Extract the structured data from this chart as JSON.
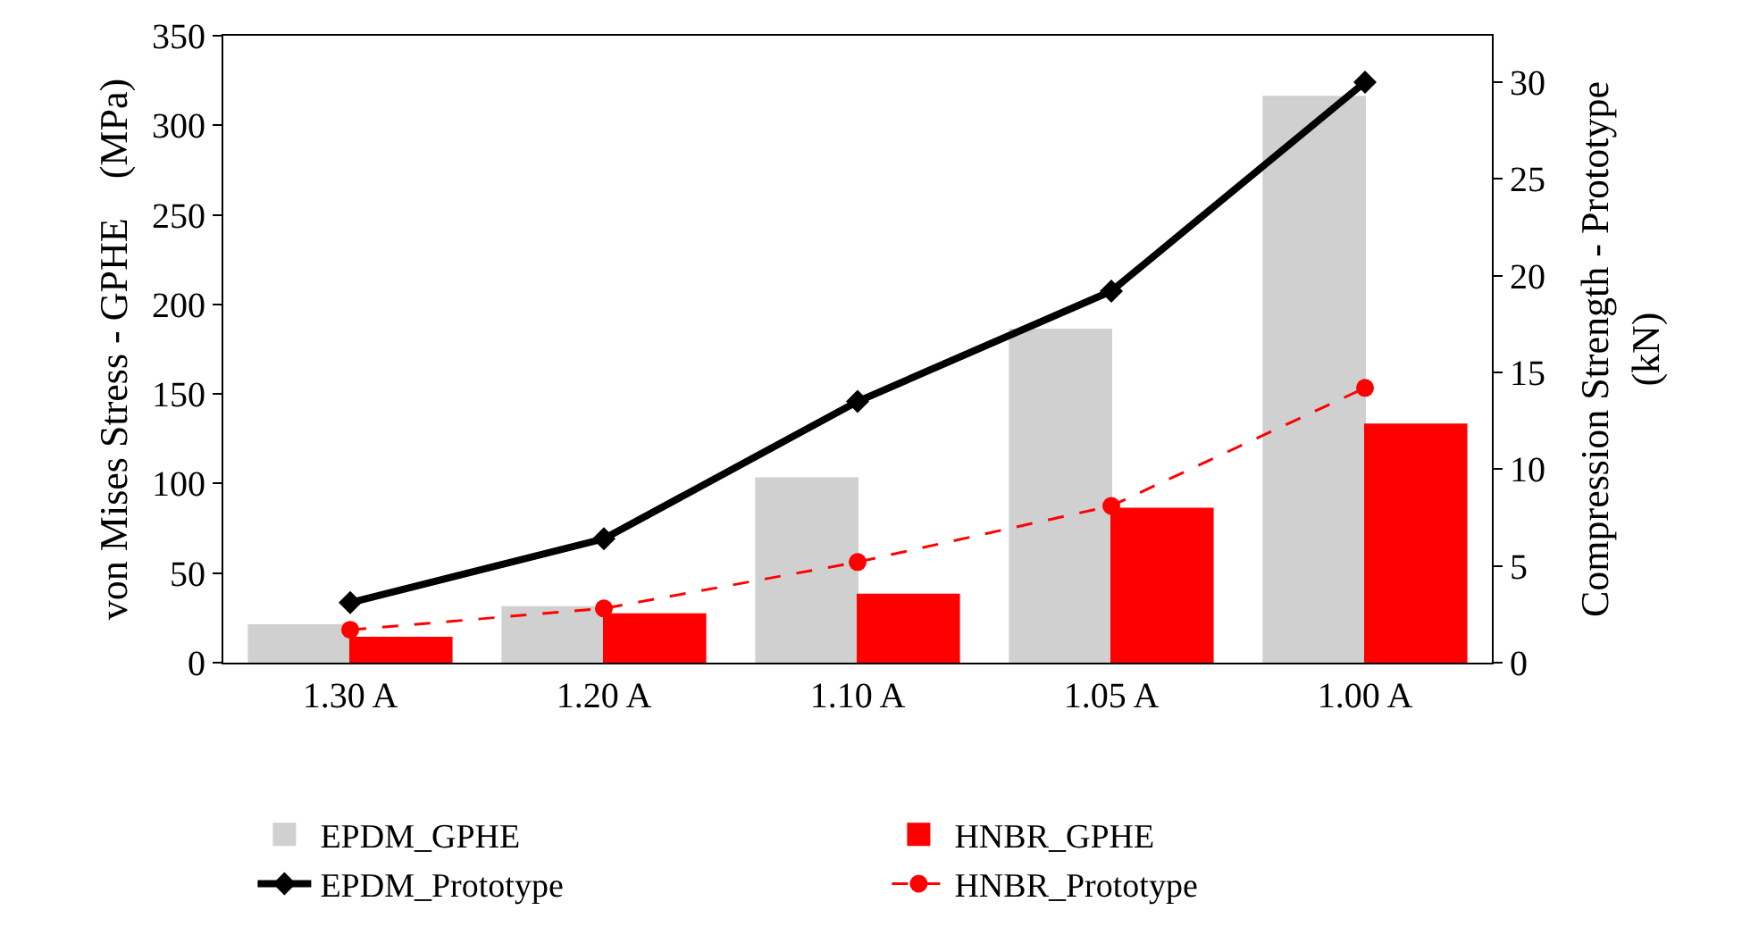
{
  "chart_data": {
    "type": "bar",
    "categories": [
      "1.30 A",
      "1.20 A",
      "1.10 A",
      "1.05 A",
      "1.00 A"
    ],
    "ylabel": "von Mises Stress - GPHE    (MPa)",
    "y2label": "Compression Strength - Prototype\n(kN)",
    "ylim": [
      0,
      350
    ],
    "yticks": [
      0,
      50,
      100,
      150,
      200,
      250,
      300,
      350
    ],
    "y2lim": [
      0,
      32.4
    ],
    "y2ticks": [
      0,
      5,
      10,
      15,
      20,
      25,
      30
    ],
    "grid": false,
    "legend": "bottom",
    "series": [
      {
        "name": "EPDM_GPHE",
        "color": "#d0d0d0",
        "values": [
          21,
          31,
          103,
          186,
          316
        ]
      },
      {
        "name": "HNBR_GPHE",
        "color": "#ff0000",
        "values": [
          14,
          27,
          38,
          86,
          133
        ]
      },
      {
        "name": "EPDM_Prototype",
        "type": "line",
        "axis": "y2",
        "color": "#000000",
        "marker": "diamond",
        "line_style": "solid",
        "values": [
          3.1,
          6.4,
          13.5,
          19.2,
          30.0
        ]
      },
      {
        "name": "HNBR_Prototype",
        "type": "line",
        "axis": "y2",
        "color": "#ff0000",
        "marker": "circle",
        "line_style": "dashed",
        "values": [
          1.7,
          2.8,
          5.2,
          8.1,
          14.2
        ]
      }
    ]
  }
}
